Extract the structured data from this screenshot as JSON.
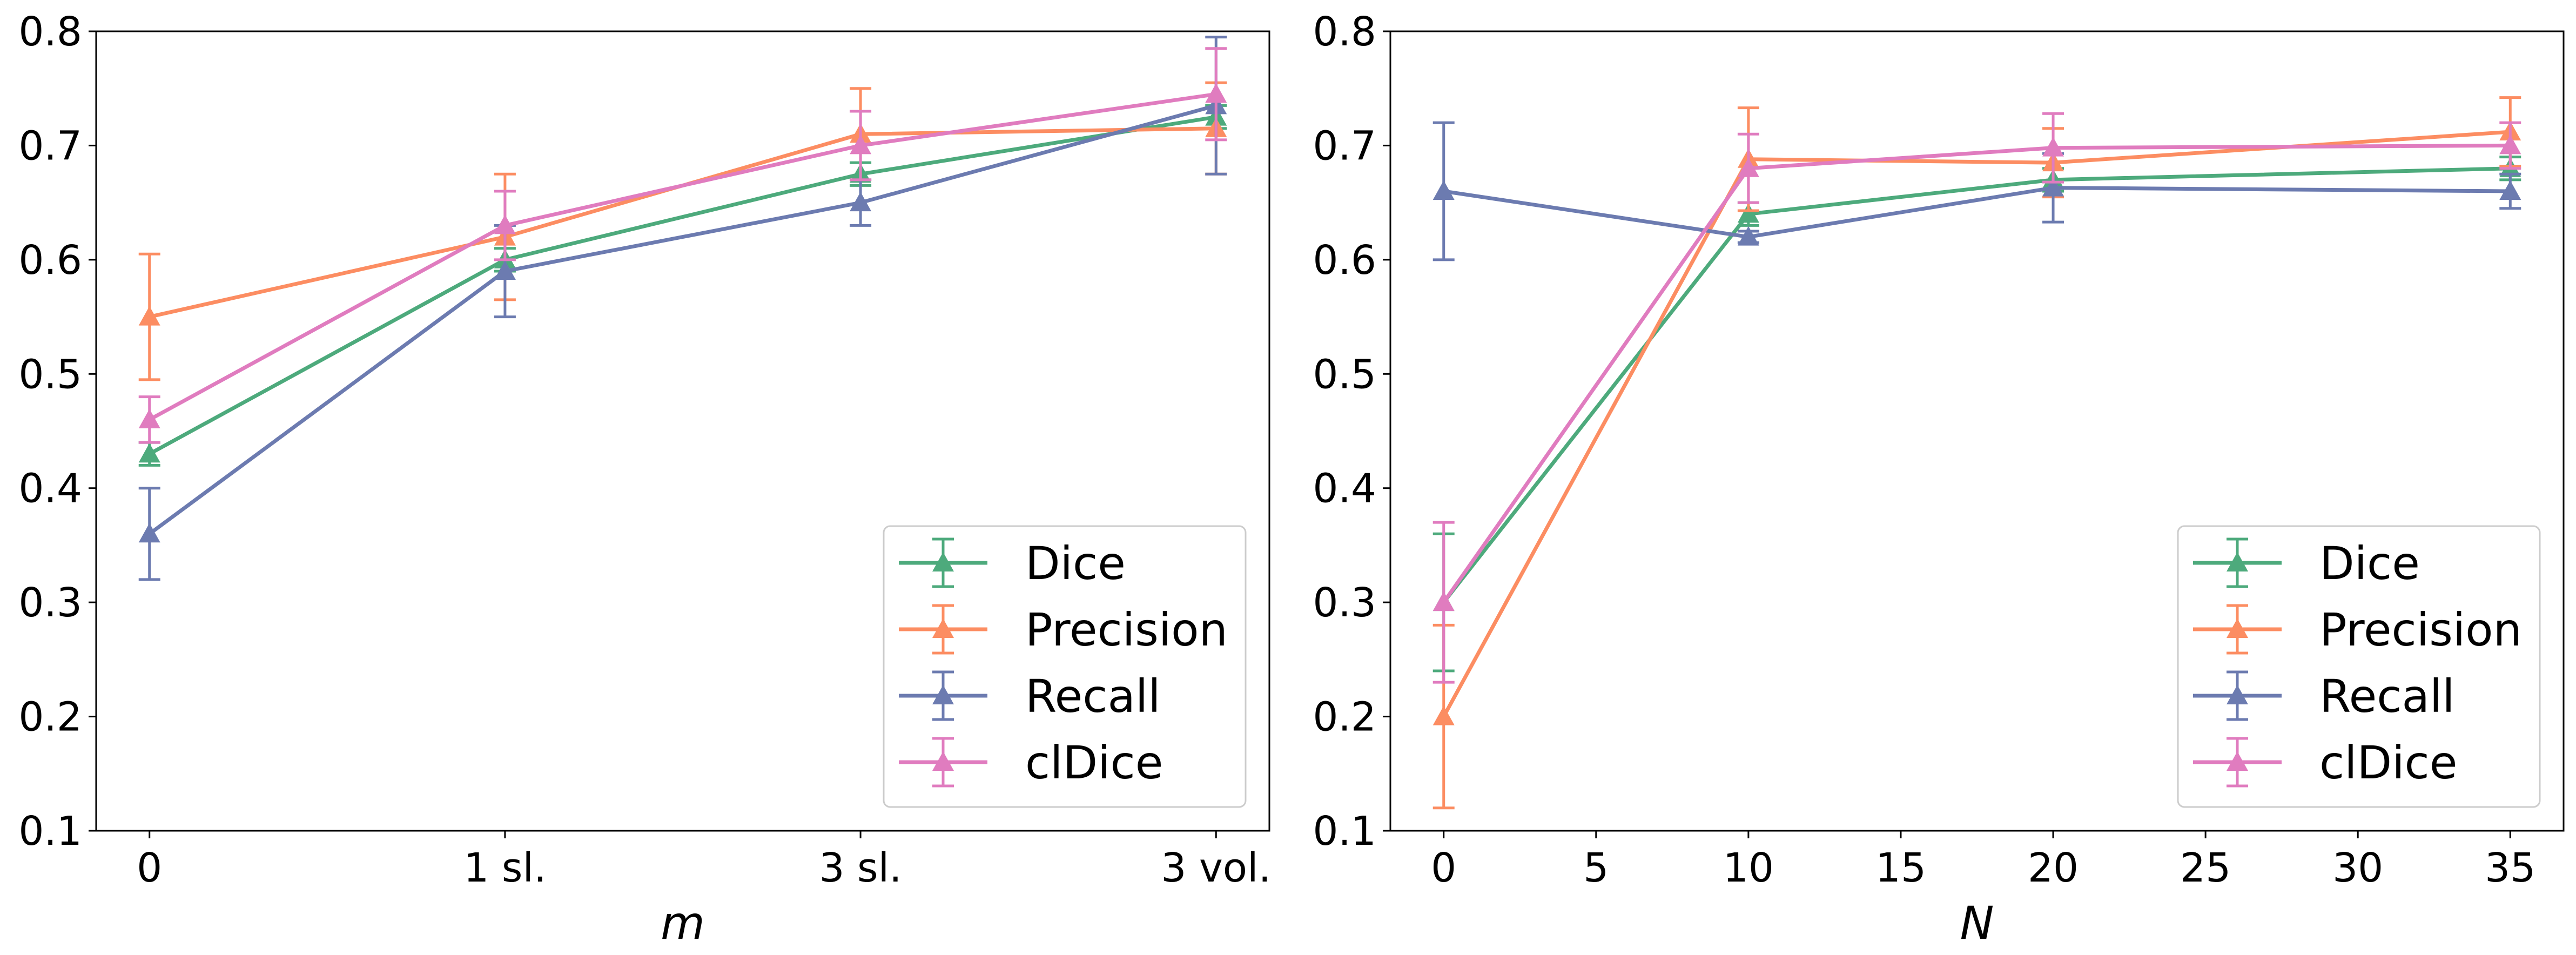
{
  "chart_data": [
    {
      "type": "line",
      "id": "left",
      "xlabel": "m",
      "ylabel": "",
      "ylim": [
        0.1,
        0.8
      ],
      "yticks": [
        "0.1",
        "0.2",
        "0.3",
        "0.4",
        "0.5",
        "0.6",
        "0.7",
        "0.8"
      ],
      "xlim": [
        -0.15,
        3.15
      ],
      "x": [
        0,
        1,
        2,
        3
      ],
      "xtick_values": [
        0,
        1,
        2,
        3
      ],
      "xticks": [
        "0",
        "1 sl.",
        "3 sl.",
        "3 vol."
      ],
      "legend_position": "lower-right",
      "series": [
        {
          "name": "Dice",
          "color": "#4daa7c",
          "values": [
            0.43,
            0.6,
            0.675,
            0.725
          ],
          "errors": [
            0.01,
            0.01,
            0.01,
            0.01
          ]
        },
        {
          "name": "Precision",
          "color": "#fc8d62",
          "values": [
            0.55,
            0.62,
            0.71,
            0.715
          ],
          "errors": [
            0.055,
            0.055,
            0.04,
            0.04
          ]
        },
        {
          "name": "Recall",
          "color": "#6c7bb0",
          "values": [
            0.36,
            0.59,
            0.65,
            0.735
          ],
          "errors": [
            0.04,
            0.04,
            0.02,
            0.06
          ]
        },
        {
          "name": "clDice",
          "color": "#e07cbf",
          "values": [
            0.46,
            0.63,
            0.7,
            0.745
          ],
          "errors": [
            0.02,
            0.03,
            0.03,
            0.04
          ]
        }
      ]
    },
    {
      "type": "line",
      "id": "right",
      "xlabel": "N",
      "ylabel": "",
      "ylim": [
        0.1,
        0.8
      ],
      "yticks": [
        "0.1",
        "0.2",
        "0.3",
        "0.4",
        "0.5",
        "0.6",
        "0.7",
        "0.8"
      ],
      "xlim": [
        -1.75,
        36.75
      ],
      "x": [
        0,
        10,
        20,
        35
      ],
      "xtick_values": [
        0,
        5,
        10,
        15,
        20,
        25,
        30,
        35
      ],
      "xticks": [
        "0",
        "5",
        "10",
        "15",
        "20",
        "25",
        "30",
        "35"
      ],
      "legend_position": "lower-right",
      "series": [
        {
          "name": "Dice",
          "color": "#4daa7c",
          "values": [
            0.3,
            0.64,
            0.67,
            0.68
          ],
          "errors": [
            0.06,
            0.01,
            0.01,
            0.01
          ]
        },
        {
          "name": "Precision",
          "color": "#fc8d62",
          "values": [
            0.2,
            0.688,
            0.685,
            0.712
          ],
          "errors": [
            0.08,
            0.045,
            0.03,
            0.03
          ]
        },
        {
          "name": "Recall",
          "color": "#6c7bb0",
          "values": [
            0.66,
            0.62,
            0.663,
            0.66
          ],
          "errors": [
            0.06,
            0.005,
            0.03,
            0.015
          ]
        },
        {
          "name": "clDice",
          "color": "#e07cbf",
          "values": [
            0.3,
            0.68,
            0.698,
            0.7
          ],
          "errors": [
            0.07,
            0.03,
            0.03,
            0.02
          ]
        }
      ]
    }
  ]
}
